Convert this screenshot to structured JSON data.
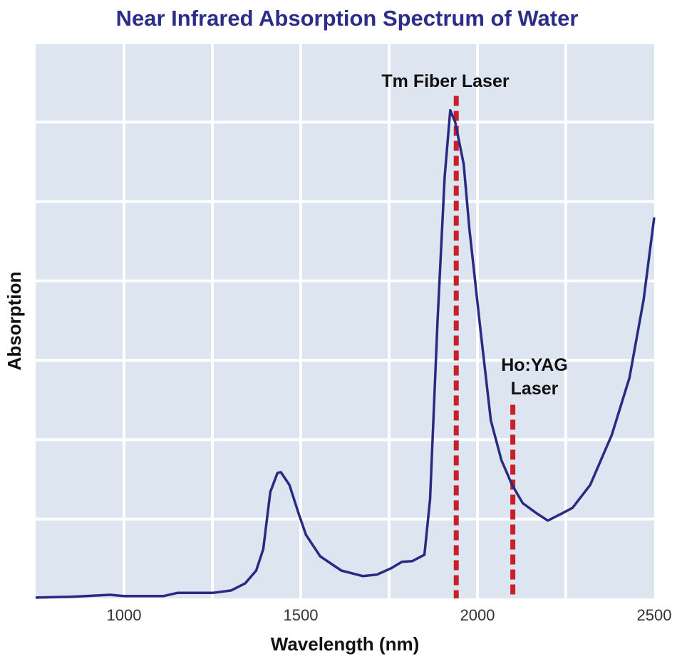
{
  "chart_data": {
    "type": "line",
    "title": "Near Infrared Absorption Spectrum of Water",
    "xlabel": "Wavelength (nm)",
    "ylabel": "Absorption",
    "xlim": [
      750,
      2500
    ],
    "ylim": [
      0,
      7
    ],
    "x_gridlines": [
      1000,
      1250,
      1500,
      1750,
      2000,
      2250
    ],
    "y_gridlines": [
      1,
      2,
      3,
      4,
      5,
      6,
      7
    ],
    "x_ticks": [
      1000,
      1500,
      2000,
      2500
    ],
    "x_tick_labels": [
      "1000",
      "1500",
      "2000",
      "2500"
    ],
    "grid": true,
    "colors": {
      "background": "#dce5f0",
      "grid": "#ffffff",
      "line": "#2a2a82",
      "marker_line": "#c8202a",
      "title": "#2b2d88"
    },
    "series": [
      {
        "x": [
          750,
          850,
          961,
          1000,
          1112,
          1152,
          1253,
          1303,
          1343,
          1374,
          1394,
          1414,
          1434,
          1444,
          1468,
          1494,
          1515,
          1555,
          1615,
          1676,
          1716,
          1756,
          1786,
          1816,
          1850,
          1866,
          1887,
          1907,
          1923,
          1937,
          1961,
          1977,
          2008,
          2038,
          2068,
          2098,
          2128,
          2168,
          2199,
          2239,
          2269,
          2319,
          2380,
          2430,
          2470,
          2500
        ],
        "y": [
          0.01,
          0.02,
          0.045,
          0.03,
          0.03,
          0.07,
          0.07,
          0.1,
          0.19,
          0.35,
          0.62,
          1.34,
          1.58,
          1.59,
          1.43,
          1.07,
          0.8,
          0.53,
          0.35,
          0.28,
          0.3,
          0.38,
          0.46,
          0.47,
          0.55,
          1.25,
          3.5,
          5.3,
          6.15,
          6.0,
          5.47,
          4.66,
          3.4,
          2.24,
          1.74,
          1.43,
          1.2,
          1.07,
          0.98,
          1.07,
          1.14,
          1.43,
          2.06,
          2.78,
          3.76,
          4.8
        ]
      }
    ],
    "annotations": [
      {
        "label_lines": [
          "Tm Fiber Laser"
        ],
        "x": 1940,
        "y_top": 6.33
      },
      {
        "label_lines": [
          "Ho:YAG",
          "Laser"
        ],
        "x": 2100,
        "y_top": 2.44
      }
    ]
  }
}
